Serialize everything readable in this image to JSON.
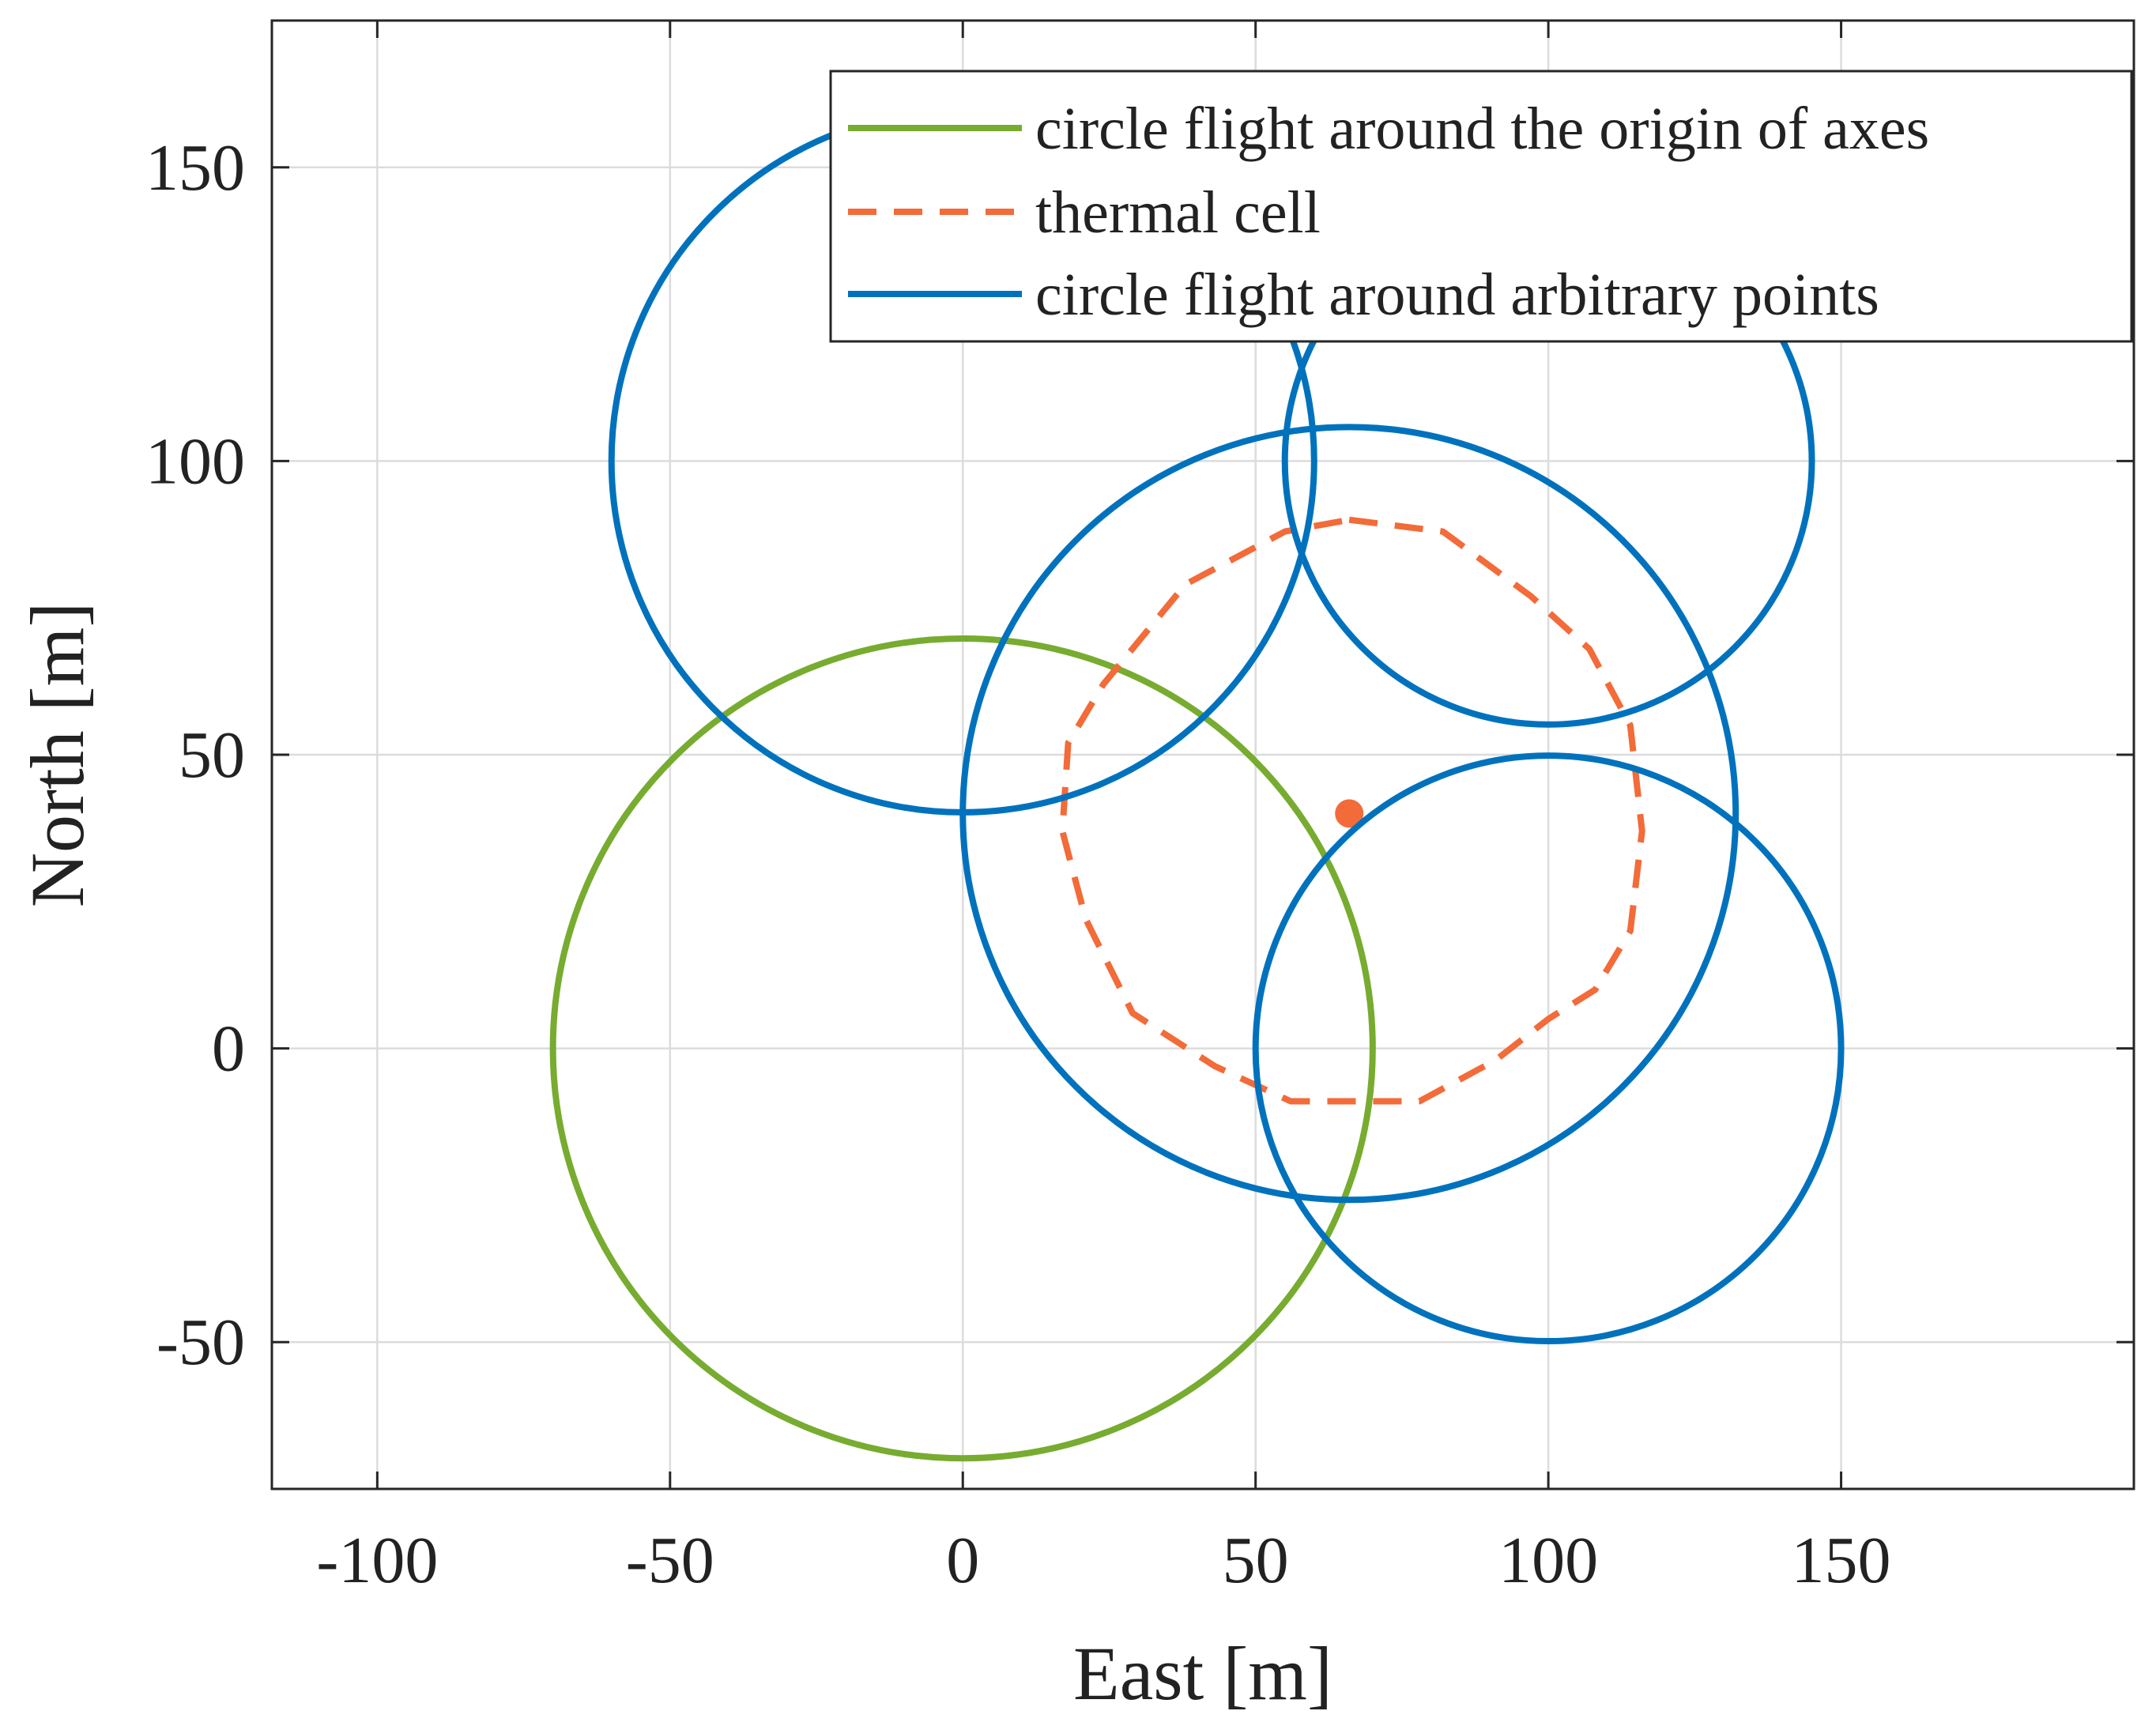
{
  "chart_data": {
    "type": "line",
    "title": "",
    "xlabel": "East [m]",
    "ylabel": "North [m]",
    "xlim": [
      -118,
      200
    ],
    "ylim": [
      -75,
      175
    ],
    "grid": true,
    "xticks": [
      -100,
      -50,
      0,
      50,
      100,
      150
    ],
    "xtick_labels": [
      "-100",
      "-50",
      "0",
      "50",
      "100",
      "150"
    ],
    "yticks": [
      -50,
      0,
      50,
      100,
      150
    ],
    "ytick_labels": [
      "-50",
      "0",
      "50",
      "100",
      "150"
    ],
    "legend_position": "top-right",
    "series": [
      {
        "name": "circle flight around the origin of axes",
        "style": "solid",
        "color": "#77AC30",
        "circles": [
          {
            "cx": 0,
            "cy": 0,
            "r": 70
          }
        ]
      },
      {
        "name": "thermal cell",
        "style": "dashed",
        "color": "#F26B38",
        "polyline": [
          [
            66,
            90
          ],
          [
            82,
            88
          ],
          [
            97,
            77
          ],
          [
            107,
            68
          ],
          [
            114,
            55
          ],
          [
            116,
            37
          ],
          [
            114,
            20
          ],
          [
            108,
            10
          ],
          [
            100,
            5
          ],
          [
            91,
            -2
          ],
          [
            78,
            -9
          ],
          [
            56,
            -9
          ],
          [
            43,
            -3
          ],
          [
            29,
            6
          ],
          [
            21,
            22
          ],
          [
            17,
            37
          ],
          [
            18,
            52
          ],
          [
            24,
            62
          ],
          [
            38,
            79
          ],
          [
            55,
            88
          ],
          [
            66,
            90
          ]
        ],
        "marker": {
          "x": 66,
          "y": 40,
          "color": "#F26B38"
        }
      },
      {
        "name": "circle flight around arbitrary points",
        "style": "solid",
        "color": "#0072BD",
        "circles": [
          {
            "cx": 0,
            "cy": 100,
            "r": 60
          },
          {
            "cx": 100,
            "cy": 100,
            "r": 45
          },
          {
            "cx": 66,
            "cy": 40,
            "r": 66
          },
          {
            "cx": 100,
            "cy": 0,
            "r": 50
          }
        ]
      }
    ]
  }
}
